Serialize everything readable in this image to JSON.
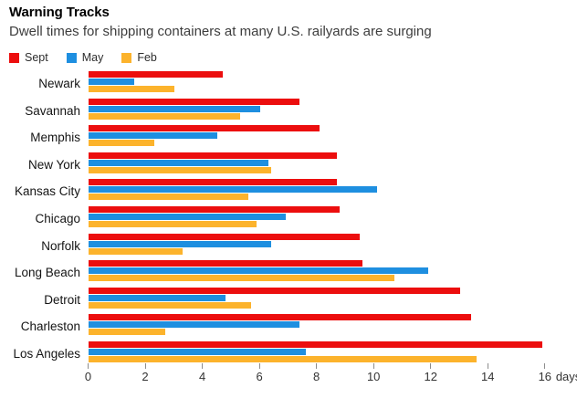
{
  "header": {
    "title": "Warning Tracks",
    "subtitle": "Dwell times for shipping containers at many U.S. railyards are surging"
  },
  "chart_data": {
    "type": "bar",
    "orientation": "horizontal",
    "title": "Warning Tracks",
    "subtitle": "Dwell times for shipping containers at many U.S. railyards are surging",
    "categories": [
      "Newark",
      "Savannah",
      "Memphis",
      "New York",
      "Kansas City",
      "Chicago",
      "Norfolk",
      "Long Beach",
      "Detroit",
      "Charleston",
      "Los Angeles"
    ],
    "series": [
      {
        "name": "Sept",
        "color": "#ec0e0e",
        "values": [
          4.7,
          7.4,
          8.1,
          8.7,
          8.7,
          8.8,
          9.5,
          9.6,
          13.0,
          13.4,
          15.9
        ]
      },
      {
        "name": "May",
        "color": "#1e8fe0",
        "values": [
          1.6,
          6.0,
          4.5,
          6.3,
          10.1,
          6.9,
          6.4,
          11.9,
          4.8,
          7.4,
          7.6
        ]
      },
      {
        "name": "Feb",
        "color": "#fcb32c",
        "values": [
          3.0,
          5.3,
          2.3,
          6.4,
          5.6,
          5.9,
          3.3,
          10.7,
          5.7,
          2.7,
          13.6
        ]
      }
    ],
    "x_axis": {
      "min": 0,
      "max": 16,
      "step": 2,
      "tick_labels": [
        "0",
        "2",
        "4",
        "6",
        "8",
        "10",
        "12",
        "14",
        "16"
      ],
      "unit_suffix": "days"
    },
    "ylabel": "",
    "xlabel": "days",
    "legend_position": "top-left",
    "grid": false,
    "background": "#ffffff"
  }
}
